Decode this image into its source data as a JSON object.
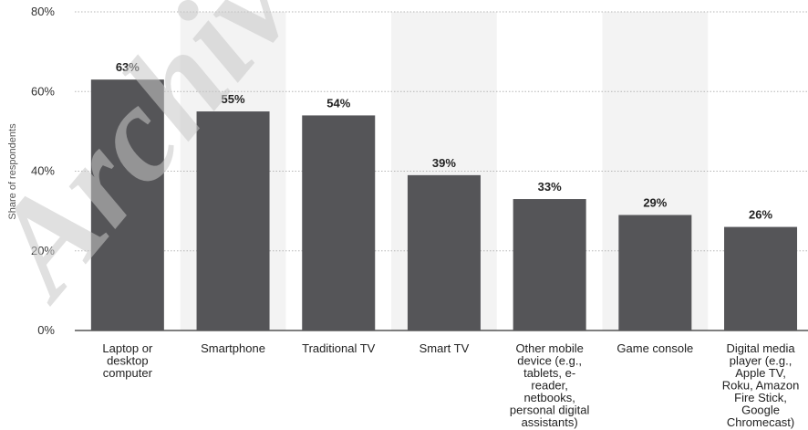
{
  "chart_data": {
    "type": "bar",
    "ylabel": "Share of respondents",
    "y_ticks": [
      "0%",
      "20%",
      "40%",
      "60%",
      "80%"
    ],
    "ylim": [
      0,
      80
    ],
    "grid": true,
    "categories": [
      "Laptop or desktop computer",
      "Smartphone",
      "Traditional TV",
      "Smart TV",
      "Other mobile device (e.g., tablets, e-reader, netbooks, personal digital assistants)",
      "Game console",
      "Digital media player (e.g., Apple TV, Roku, Amazon Fire Stick, Google Chromecast)"
    ],
    "category_lines": [
      [
        "Laptop or",
        "desktop",
        "computer"
      ],
      [
        "Smartphone"
      ],
      [
        "Traditional TV"
      ],
      [
        "Smart TV"
      ],
      [
        "Other mobile",
        "device (e.g.,",
        "tablets, e-",
        "reader,",
        "netbooks,",
        "personal digital",
        "assistants)"
      ],
      [
        "Game console"
      ],
      [
        "Digital media",
        "player (e.g.,",
        "Apple TV,",
        "Roku, Amazon",
        "Fire Stick,",
        "Google",
        "Chromecast)"
      ]
    ],
    "values": [
      63,
      55,
      54,
      39,
      33,
      29,
      26
    ],
    "data_labels": [
      "63%",
      "55%",
      "54%",
      "39%",
      "33%",
      "29%",
      "26%"
    ],
    "colors": {
      "bar": "#555558",
      "band": "#f3f3f3",
      "grid": "#b5b5b5",
      "axis": "#333333"
    }
  },
  "watermark": "Archive"
}
